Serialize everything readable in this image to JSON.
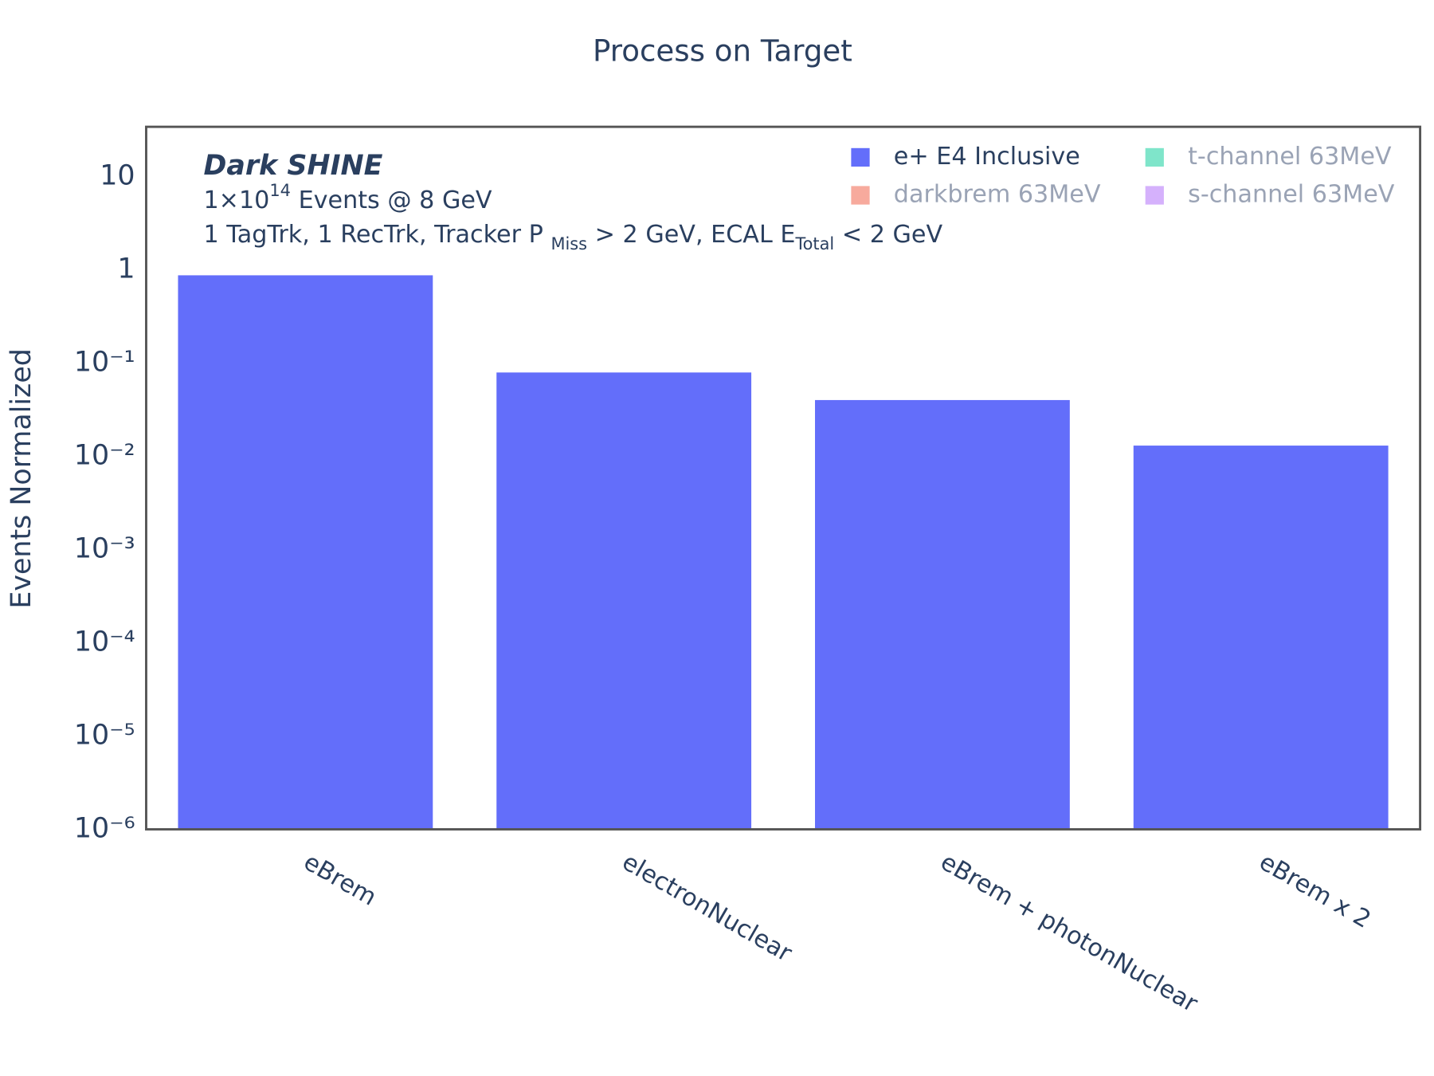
{
  "chart_data": {
    "type": "bar",
    "title": "Process on Target",
    "y_label": "Events Normalized",
    "log_y": true,
    "categories": [
      "eBrem",
      "electronNuclear",
      "eBrem + photonNuclear",
      "eBrem x 2"
    ],
    "series": [
      {
        "name": "e+ E4 Inclusive",
        "color": "#636efa",
        "values": [
          0.87,
          0.079,
          0.04,
          0.013
        ]
      },
      {
        "name": "darkbrem 63MeV",
        "color": "#ef553b",
        "visible": false
      },
      {
        "name": "t-channel 63MeV",
        "color": "#00cc96",
        "visible": false
      },
      {
        "name": "s-channel 63MeV",
        "color": "#ab63fa",
        "visible": false
      }
    ],
    "ylim": [
      1e-06,
      34
    ],
    "yticks": [
      {
        "value": 1e-06,
        "label": "10⁻⁶"
      },
      {
        "value": 1e-05,
        "label": "10⁻⁵"
      },
      {
        "value": 0.0001,
        "label": "10⁻⁴"
      },
      {
        "value": 0.001,
        "label": "10⁻³"
      },
      {
        "value": 0.01,
        "label": "10⁻²"
      },
      {
        "value": 0.1,
        "label": "10⁻¹"
      },
      1,
      10
    ],
    "legend": "top-right",
    "annotations": [
      [
        {
          "text": "Dark SHINE",
          "style": "bold-italic"
        }
      ],
      [
        {
          "text": "1×10"
        },
        {
          "text": "14",
          "shift": "super"
        },
        {
          "text": " Events @ 8 GeV"
        }
      ],
      [
        {
          "text": "1 TagTrk, 1 RecTrk, Tracker P "
        },
        {
          "text": "Miss",
          "shift": "sub"
        },
        {
          "text": " > 2 GeV, ECAL E"
        },
        {
          "text": "Total",
          "shift": "sub"
        },
        {
          "text": " < 2 GeV"
        }
      ]
    ]
  }
}
